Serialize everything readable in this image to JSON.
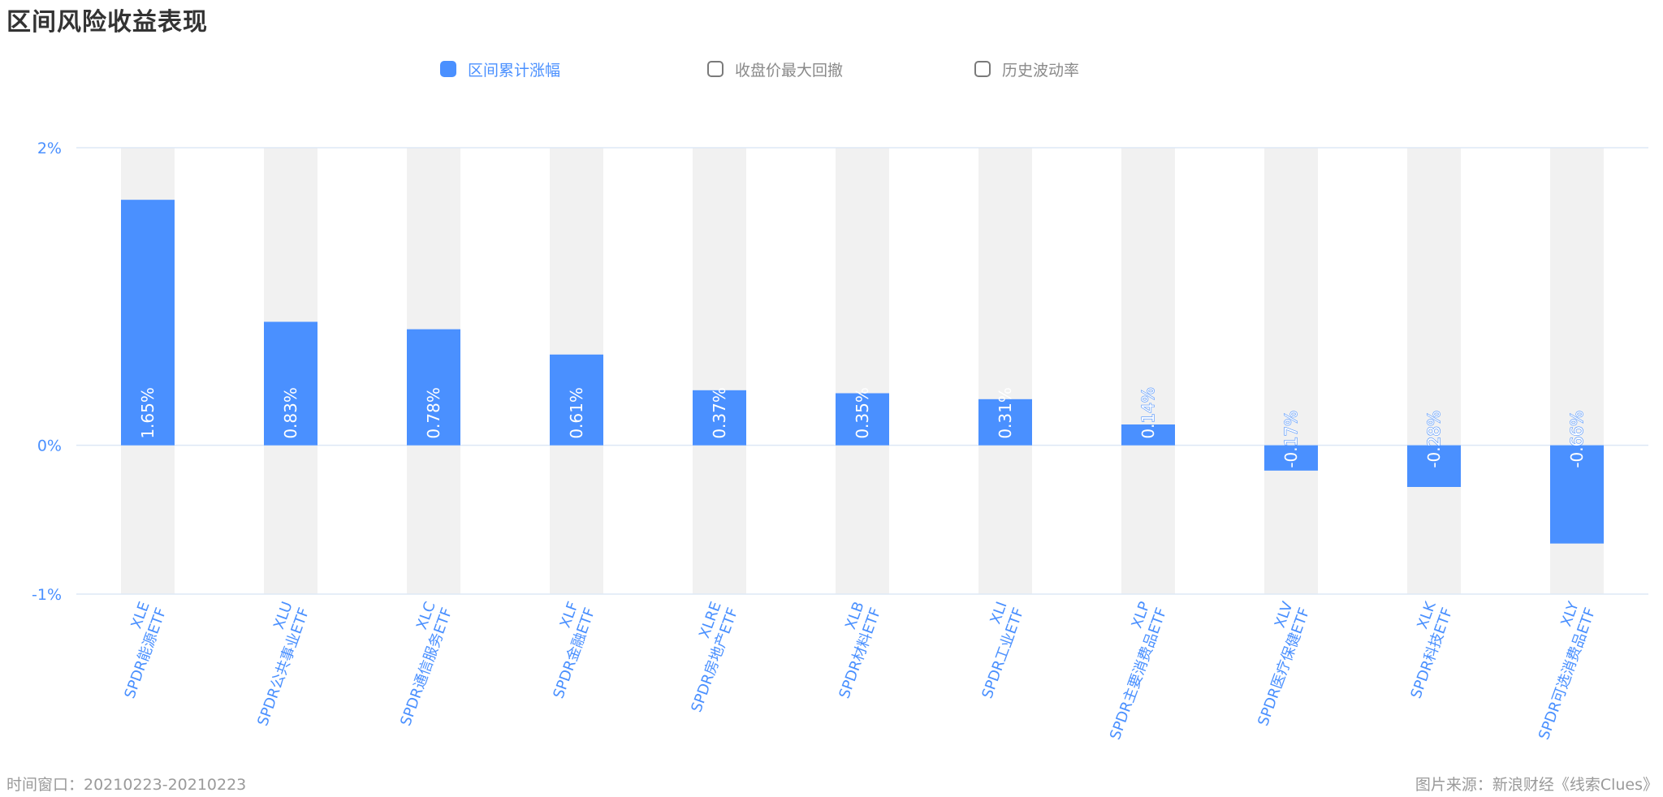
{
  "title": "区间风险收益表现",
  "legend": [
    {
      "label": "区间累计涨幅",
      "active": true
    },
    {
      "label": "收盘价最大回撤",
      "active": false
    },
    {
      "label": "历史波动率",
      "active": false
    }
  ],
  "footer": {
    "left": "时间窗口：20210223-20210223",
    "right": "图片来源：新浪财经《线索Clues》"
  },
  "colors": {
    "bar": "#4a90ff",
    "bg_column": "#f1f1f1",
    "axis_text": "#4a90ff",
    "grid": "#dde8f5"
  },
  "chart_data": {
    "type": "bar",
    "categories": [
      {
        "code": "XLE",
        "name": "SPDR能源ETF"
      },
      {
        "code": "XLU",
        "name": "SPDR公共事业ETF"
      },
      {
        "code": "XLC",
        "name": "SPDR通信服务ETF"
      },
      {
        "code": "XLF",
        "name": "SPDR金融ETF"
      },
      {
        "code": "XLRE",
        "name": "SPDR房地产ETF"
      },
      {
        "code": "XLB",
        "name": "SPDR材料ETF"
      },
      {
        "code": "XLI",
        "name": "SPDR工业ETF"
      },
      {
        "code": "XLP",
        "name": "SPDR主要消费品ETF"
      },
      {
        "code": "XLV",
        "name": "SPDR医疗保健ETF"
      },
      {
        "code": "XLK",
        "name": "SPDR科技ETF"
      },
      {
        "code": "XLY",
        "name": "SPDR可选消费品ETF"
      }
    ],
    "series": [
      {
        "name": "区间累计涨幅",
        "values": [
          1.65,
          0.83,
          0.78,
          0.61,
          0.37,
          0.35,
          0.31,
          0.14,
          -0.17,
          -0.28,
          -0.66
        ],
        "labels": [
          "1.65%",
          "0.83%",
          "0.78%",
          "0.61%",
          "0.37%",
          "0.35%",
          "0.31%",
          "0.14%",
          "-0.17%",
          "-0.28%",
          "-0.66%"
        ]
      }
    ],
    "yticks": [
      {
        "value": 2,
        "label": "2%"
      },
      {
        "value": 0,
        "label": "0%"
      },
      {
        "value": -1,
        "label": "-1%"
      }
    ],
    "ylim": [
      -1,
      2
    ],
    "grid": true
  }
}
